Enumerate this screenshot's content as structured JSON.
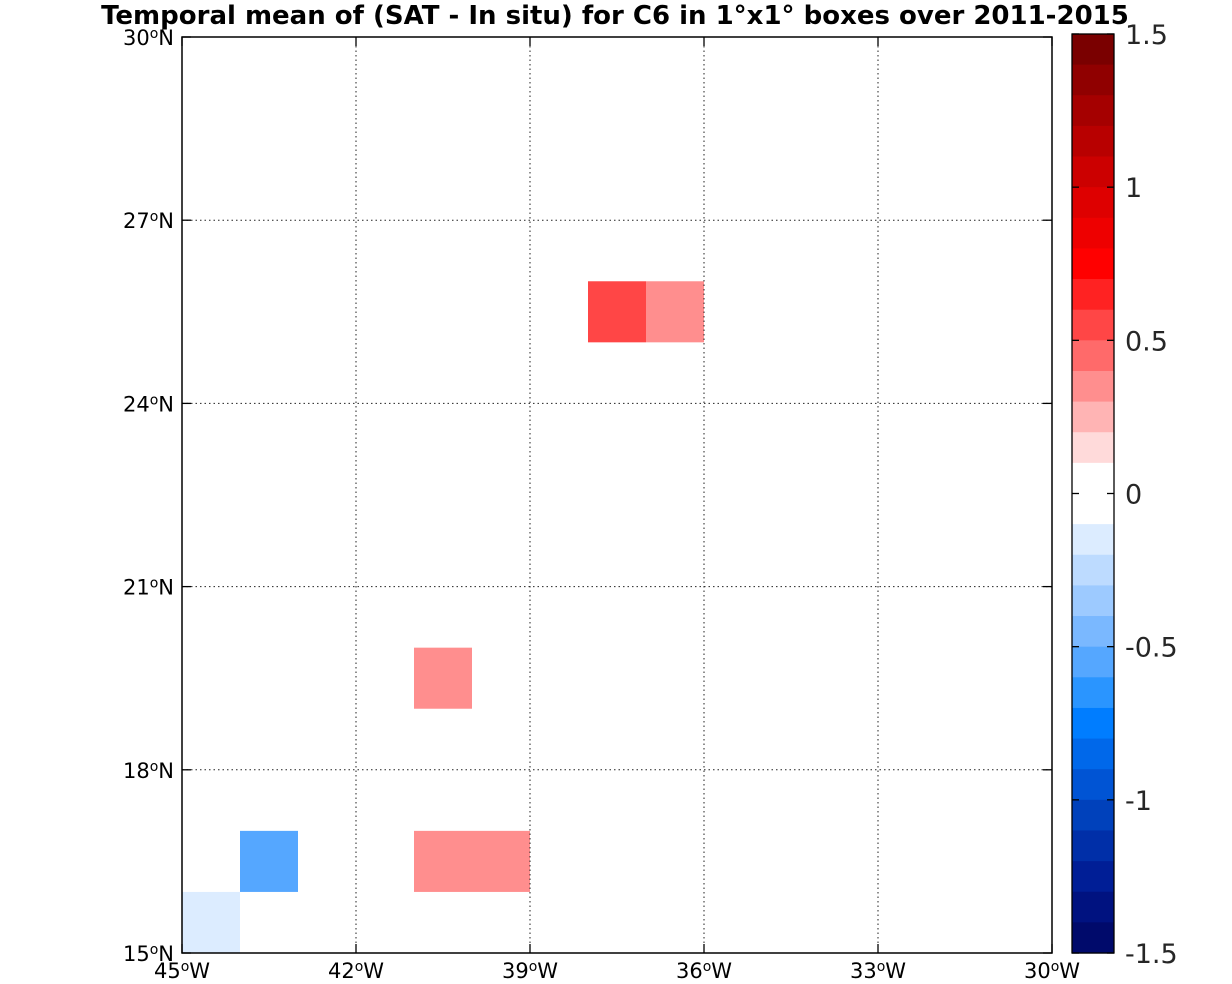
{
  "chart_data": {
    "type": "heatmap",
    "title": "Temporal mean of (SAT - In situ) for C6 in 1°x1° boxes over 2011-2015",
    "xlabel": "",
    "ylabel": "",
    "xlim": [
      -45,
      -30
    ],
    "ylim": [
      15,
      30
    ],
    "x_ticks": [
      {
        "value": -45,
        "deg": "45",
        "hemi": "W"
      },
      {
        "value": -42,
        "deg": "42",
        "hemi": "W"
      },
      {
        "value": -39,
        "deg": "39",
        "hemi": "W"
      },
      {
        "value": -36,
        "deg": "36",
        "hemi": "W"
      },
      {
        "value": -33,
        "deg": "33",
        "hemi": "W"
      },
      {
        "value": -30,
        "deg": "30",
        "hemi": "W"
      }
    ],
    "y_ticks": [
      {
        "value": 15,
        "deg": "15",
        "hemi": "N"
      },
      {
        "value": 18,
        "deg": "18",
        "hemi": "N"
      },
      {
        "value": 21,
        "deg": "21",
        "hemi": "N"
      },
      {
        "value": 24,
        "deg": "24",
        "hemi": "N"
      },
      {
        "value": 27,
        "deg": "27",
        "hemi": "N"
      },
      {
        "value": 30,
        "deg": "30",
        "hemi": "N"
      }
    ],
    "grid": true,
    "grid_style": "dotted",
    "cells": [
      {
        "lon": -45,
        "lat": 15,
        "value": -0.1
      },
      {
        "lon": -44,
        "lat": 16,
        "value": -0.55
      },
      {
        "lon": -41,
        "lat": 16,
        "value": 0.3
      },
      {
        "lon": -40,
        "lat": 16,
        "value": 0.4
      },
      {
        "lon": -41,
        "lat": 19,
        "value": 0.3
      },
      {
        "lon": -38,
        "lat": 25,
        "value": 0.6
      },
      {
        "lon": -37,
        "lat": 25,
        "value": 0.4
      }
    ],
    "colorbar": {
      "range": [
        -1.5,
        1.5
      ],
      "ticks": [
        1.5,
        1,
        0.5,
        0,
        -0.5,
        -1,
        -1.5
      ],
      "tick_labels": [
        "1.5",
        "1",
        "0.5",
        "0",
        "-0.5",
        "-1",
        "-1.5"
      ],
      "levels": [
        "#7a0000",
        "#900000",
        "#a50000",
        "#b80000",
        "#cc0000",
        "#de0000",
        "#ee0000",
        "#ff0000",
        "#ff2222",
        "#ff4646",
        "#ff6a6a",
        "#ff8e8e",
        "#ffb4b4",
        "#ffdada",
        "#ffffff",
        "#ffffff",
        "#dcecff",
        "#bddbff",
        "#9dcaff",
        "#7ab8ff",
        "#55a7ff",
        "#2a95ff",
        "#007dff",
        "#0068ea",
        "#0054d4",
        "#0041bb",
        "#002fa8",
        "#001e96",
        "#001280",
        "#000a6b"
      ]
    }
  }
}
